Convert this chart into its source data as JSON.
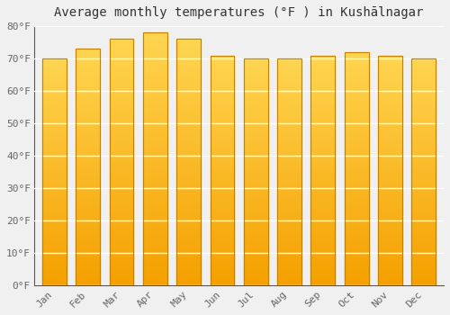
{
  "title": "Average monthly temperatures (°F ) in Kushālnagar",
  "months": [
    "Jan",
    "Feb",
    "Mar",
    "Apr",
    "May",
    "Jun",
    "Jul",
    "Aug",
    "Sep",
    "Oct",
    "Nov",
    "Dec"
  ],
  "values": [
    70,
    73,
    76,
    78,
    76,
    71,
    70,
    70,
    71,
    72,
    71,
    70
  ],
  "bar_color_top": "#FFD060",
  "bar_color_bottom": "#F5A000",
  "ylim": [
    0,
    80
  ],
  "yticks": [
    0,
    10,
    20,
    30,
    40,
    50,
    60,
    70,
    80
  ],
  "ytick_labels": [
    "0°F",
    "10°F",
    "20°F",
    "30°F",
    "40°F",
    "50°F",
    "60°F",
    "70°F",
    "80°F"
  ],
  "background_color": "#F0F0F0",
  "grid_color": "#FFFFFF",
  "title_fontsize": 10,
  "tick_fontsize": 8,
  "bar_edge_color": "#C88000",
  "axis_color": "#555555",
  "tick_color": "#666666"
}
